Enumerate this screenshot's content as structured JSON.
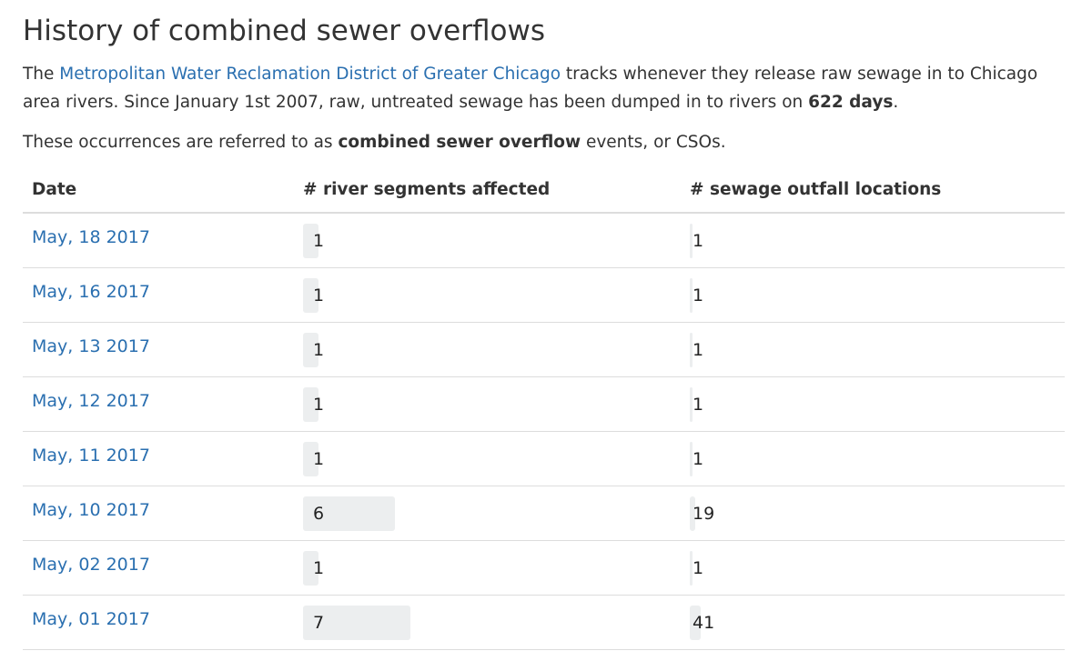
{
  "header": {
    "title": "History of combined sewer overflows"
  },
  "intro": {
    "prefix": "The ",
    "link_text": "Metropolitan Water Reclamation District of Greater Chicago",
    "middle": " tracks whenever they release raw sewage in to Chicago area rivers. Since January 1st 2007, raw, untreated sewage has been dumped in to rivers on ",
    "days_bold": "622 days",
    "suffix": ".",
    "line2_prefix": "These occurrences are referred to as ",
    "line2_bold": "combined sewer overflow",
    "line2_suffix": " events, or CSOs."
  },
  "table": {
    "headers": {
      "date": "Date",
      "segments": "# river segments affected",
      "outfalls": "# sewage outfall locations"
    },
    "rows": [
      {
        "date": "May, 18 2017",
        "segments": 1,
        "outfalls": 1
      },
      {
        "date": "May, 16 2017",
        "segments": 1,
        "outfalls": 1
      },
      {
        "date": "May, 13 2017",
        "segments": 1,
        "outfalls": 1
      },
      {
        "date": "May, 12 2017",
        "segments": 1,
        "outfalls": 1
      },
      {
        "date": "May, 11 2017",
        "segments": 1,
        "outfalls": 1
      },
      {
        "date": "May, 10 2017",
        "segments": 6,
        "outfalls": 19
      },
      {
        "date": "May, 02 2017",
        "segments": 1,
        "outfalls": 1
      },
      {
        "date": "May, 01 2017",
        "segments": 7,
        "outfalls": 41
      }
    ]
  },
  "colors": {
    "link": "#2a6fb0",
    "bar": "#eceeef",
    "text": "#333333"
  }
}
